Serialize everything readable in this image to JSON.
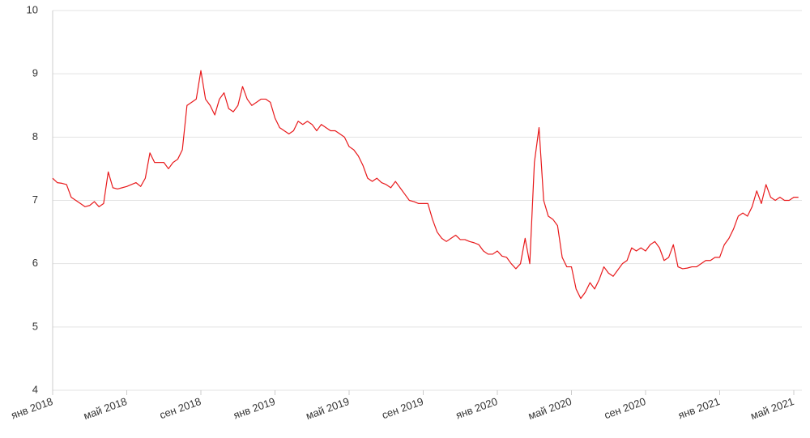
{
  "chart_data": {
    "type": "line",
    "categories": [
      "янв 2018",
      null,
      null,
      null,
      null,
      null,
      null,
      null,
      null,
      null,
      null,
      null,
      null,
      null,
      null,
      null,
      "май 2018",
      null,
      null,
      null,
      null,
      null,
      null,
      null,
      null,
      null,
      null,
      null,
      null,
      null,
      null,
      null,
      "сен 2018",
      null,
      null,
      null,
      null,
      null,
      null,
      null,
      null,
      null,
      null,
      null,
      null,
      null,
      null,
      null,
      "янв 2019",
      null,
      null,
      null,
      null,
      null,
      null,
      null,
      null,
      null,
      null,
      null,
      null,
      null,
      null,
      null,
      "май 2019",
      null,
      null,
      null,
      null,
      null,
      null,
      null,
      null,
      null,
      null,
      null,
      null,
      null,
      null,
      null,
      "сен 2019",
      null,
      null,
      null,
      null,
      null,
      null,
      null,
      null,
      null,
      null,
      null,
      null,
      null,
      null,
      null,
      "янв 2020",
      null,
      null,
      null,
      null,
      null,
      null,
      null,
      null,
      null,
      null,
      null,
      null,
      null,
      null,
      null,
      "май 2020",
      null,
      null,
      null,
      null,
      null,
      null,
      null,
      null,
      null,
      null,
      null,
      null,
      null,
      null,
      null,
      "сен 2020",
      null,
      null,
      null,
      null,
      null,
      null,
      null,
      null,
      null,
      null,
      null,
      null,
      null,
      null,
      null,
      "янв 2021",
      null,
      null,
      null,
      null,
      null,
      null,
      null,
      null,
      null,
      null,
      null,
      null,
      null,
      null,
      null,
      "май 2021",
      null
    ],
    "series": [
      {
        "color": "#e8191b",
        "values": [
          7.35,
          7.28,
          7.27,
          7.25,
          7.05,
          7.0,
          6.95,
          6.9,
          6.92,
          6.98,
          6.9,
          6.95,
          7.45,
          7.2,
          7.18,
          7.2,
          7.22,
          7.25,
          7.28,
          7.22,
          7.35,
          7.75,
          7.6,
          7.6,
          7.6,
          7.5,
          7.6,
          7.65,
          7.8,
          8.5,
          8.55,
          8.6,
          9.05,
          8.6,
          8.5,
          8.35,
          8.6,
          8.7,
          8.45,
          8.4,
          8.5,
          8.8,
          8.6,
          8.5,
          8.55,
          8.6,
          8.6,
          8.55,
          8.3,
          8.15,
          8.1,
          8.05,
          8.1,
          8.25,
          8.2,
          8.25,
          8.2,
          8.1,
          8.2,
          8.15,
          8.1,
          8.1,
          8.05,
          8.0,
          7.85,
          7.8,
          7.7,
          7.55,
          7.35,
          7.3,
          7.35,
          7.28,
          7.25,
          7.2,
          7.3,
          7.2,
          7.1,
          7.0,
          6.98,
          6.95,
          6.95,
          6.95,
          6.7,
          6.5,
          6.4,
          6.35,
          6.4,
          6.45,
          6.38,
          6.38,
          6.35,
          6.33,
          6.3,
          6.2,
          6.15,
          6.15,
          6.2,
          6.12,
          6.1,
          6.0,
          5.92,
          6.0,
          6.4,
          6.0,
          7.6,
          8.15,
          7.0,
          6.75,
          6.7,
          6.6,
          6.1,
          5.95,
          5.95,
          5.6,
          5.45,
          5.55,
          5.7,
          5.6,
          5.75,
          5.95,
          5.85,
          5.8,
          5.9,
          6.0,
          6.05,
          6.25,
          6.2,
          6.25,
          6.2,
          6.3,
          6.35,
          6.25,
          6.05,
          6.1,
          6.3,
          5.95,
          5.92,
          5.93,
          5.95,
          5.95,
          6.0,
          6.05,
          6.05,
          6.1,
          6.1,
          6.3,
          6.4,
          6.55,
          6.75,
          6.8,
          6.75,
          6.9,
          7.15,
          6.95,
          7.25,
          7.05,
          7.0,
          7.05,
          7.0,
          7.0,
          7.05,
          7.05
        ]
      }
    ],
    "ylim": [
      4,
      10
    ],
    "yticks": [
      4,
      5,
      6,
      7,
      8,
      9,
      10
    ],
    "grid": true
  }
}
